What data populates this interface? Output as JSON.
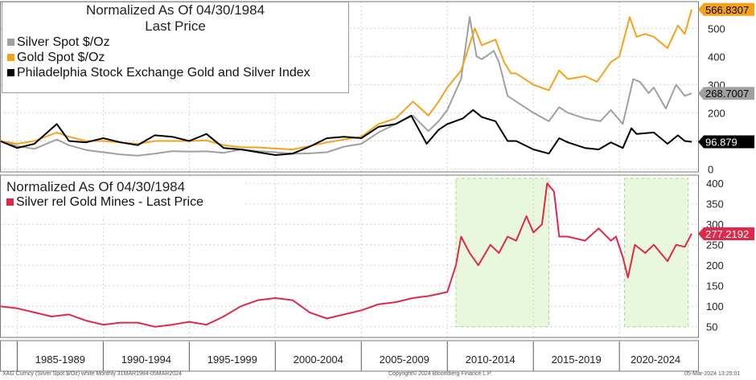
{
  "chart_data": [
    {
      "type": "line",
      "title": "Normalized As Of 04/30/1984",
      "subtitle": "Last Price",
      "ylim": [
        -10,
        595
      ],
      "y_ticks": [
        0,
        100,
        200,
        300,
        400,
        500
      ],
      "x_range": [
        1984.0,
        2024.2
      ],
      "grid": true,
      "legend_position": "top-left",
      "series": [
        {
          "name": "Silver Spot $/Oz",
          "color": "#a0a0a0",
          "last_label": "268.7007",
          "points": [
            [
              1984.0,
              100
            ],
            [
              1985.0,
              82
            ],
            [
              1986.0,
              72
            ],
            [
              1987.3,
              105
            ],
            [
              1988.0,
              85
            ],
            [
              1989.0,
              68
            ],
            [
              1990.0,
              60
            ],
            [
              1991.0,
              52
            ],
            [
              1992.0,
              48
            ],
            [
              1993.0,
              55
            ],
            [
              1994.0,
              64
            ],
            [
              1995.0,
              62
            ],
            [
              1996.0,
              63
            ],
            [
              1997.0,
              58
            ],
            [
              1998.0,
              70
            ],
            [
              1999.0,
              64
            ],
            [
              2000.0,
              60
            ],
            [
              2001.0,
              55
            ],
            [
              2002.0,
              56
            ],
            [
              2003.0,
              60
            ],
            [
              2004.0,
              80
            ],
            [
              2005.0,
              90
            ],
            [
              2006.0,
              130
            ],
            [
              2007.0,
              160
            ],
            [
              2008.0,
              190
            ],
            [
              2008.9,
              135
            ],
            [
              2009.5,
              170
            ],
            [
              2010.0,
              210
            ],
            [
              2010.8,
              320
            ],
            [
              2011.3,
              540
            ],
            [
              2011.7,
              400
            ],
            [
              2012.0,
              390
            ],
            [
              2012.7,
              420
            ],
            [
              2013.0,
              380
            ],
            [
              2013.5,
              260
            ],
            [
              2014.0,
              240
            ],
            [
              2014.5,
              220
            ],
            [
              2015.0,
              200
            ],
            [
              2015.9,
              170
            ],
            [
              2016.5,
              220
            ],
            [
              2017.0,
              200
            ],
            [
              2018.0,
              180
            ],
            [
              2018.9,
              170
            ],
            [
              2019.5,
              210
            ],
            [
              2020.2,
              160
            ],
            [
              2020.8,
              320
            ],
            [
              2021.2,
              310
            ],
            [
              2021.7,
              270
            ],
            [
              2022.0,
              290
            ],
            [
              2022.7,
              215
            ],
            [
              2023.3,
              300
            ],
            [
              2023.8,
              260
            ],
            [
              2024.2,
              269
            ]
          ]
        },
        {
          "name": "Gold Spot $/Oz",
          "color": "#f5a21b",
          "last_label": "566.8307",
          "points": [
            [
              1984.0,
              100
            ],
            [
              1985.0,
              90
            ],
            [
              1986.0,
              100
            ],
            [
              1987.3,
              130
            ],
            [
              1988.0,
              115
            ],
            [
              1989.0,
              100
            ],
            [
              1990.0,
              100
            ],
            [
              1991.0,
              95
            ],
            [
              1992.0,
              90
            ],
            [
              1993.0,
              100
            ],
            [
              1994.0,
              100
            ],
            [
              1995.0,
              100
            ],
            [
              1996.0,
              102
            ],
            [
              1997.0,
              85
            ],
            [
              1998.0,
              78
            ],
            [
              1999.0,
              77
            ],
            [
              2000.0,
              73
            ],
            [
              2001.0,
              70
            ],
            [
              2002.0,
              82
            ],
            [
              2003.0,
              95
            ],
            [
              2004.0,
              105
            ],
            [
              2005.0,
              115
            ],
            [
              2006.0,
              160
            ],
            [
              2007.0,
              180
            ],
            [
              2008.0,
              240
            ],
            [
              2008.9,
              190
            ],
            [
              2009.5,
              240
            ],
            [
              2010.0,
              290
            ],
            [
              2010.8,
              350
            ],
            [
              2011.6,
              500
            ],
            [
              2012.0,
              440
            ],
            [
              2012.8,
              460
            ],
            [
              2013.3,
              380
            ],
            [
              2013.7,
              340
            ],
            [
              2014.0,
              340
            ],
            [
              2015.0,
              300
            ],
            [
              2015.9,
              280
            ],
            [
              2016.5,
              350
            ],
            [
              2017.0,
              320
            ],
            [
              2018.0,
              330
            ],
            [
              2018.7,
              310
            ],
            [
              2019.5,
              380
            ],
            [
              2020.0,
              400
            ],
            [
              2020.6,
              540
            ],
            [
              2021.0,
              470
            ],
            [
              2021.5,
              480
            ],
            [
              2022.0,
              470
            ],
            [
              2022.8,
              430
            ],
            [
              2023.4,
              510
            ],
            [
              2023.8,
              480
            ],
            [
              2024.2,
              567
            ]
          ]
        },
        {
          "name": "Philadelphia Stock Exchange Gold and Silver Index",
          "color": "#000000",
          "last_label": "96.879",
          "points": [
            [
              1984.0,
              100
            ],
            [
              1985.0,
              75
            ],
            [
              1986.0,
              90
            ],
            [
              1987.3,
              160
            ],
            [
              1987.9,
              110
            ],
            [
              1988.0,
              100
            ],
            [
              1989.0,
              95
            ],
            [
              1990.0,
              110
            ],
            [
              1991.0,
              95
            ],
            [
              1992.0,
              85
            ],
            [
              1993.0,
              120
            ],
            [
              1994.0,
              115
            ],
            [
              1995.0,
              100
            ],
            [
              1996.0,
              125
            ],
            [
              1997.0,
              75
            ],
            [
              1998.0,
              70
            ],
            [
              1999.0,
              60
            ],
            [
              2000.0,
              50
            ],
            [
              2001.0,
              55
            ],
            [
              2002.0,
              80
            ],
            [
              2003.0,
              110
            ],
            [
              2004.0,
              115
            ],
            [
              2005.0,
              110
            ],
            [
              2006.0,
              150
            ],
            [
              2007.0,
              160
            ],
            [
              2007.9,
              190
            ],
            [
              2008.8,
              90
            ],
            [
              2009.5,
              140
            ],
            [
              2010.0,
              160
            ],
            [
              2010.9,
              180
            ],
            [
              2011.5,
              210
            ],
            [
              2012.0,
              185
            ],
            [
              2012.8,
              170
            ],
            [
              2013.5,
              100
            ],
            [
              2014.0,
              100
            ],
            [
              2015.0,
              70
            ],
            [
              2015.9,
              55
            ],
            [
              2016.5,
              110
            ],
            [
              2017.0,
              95
            ],
            [
              2018.0,
              75
            ],
            [
              2018.8,
              70
            ],
            [
              2019.5,
              95
            ],
            [
              2020.2,
              75
            ],
            [
              2020.7,
              145
            ],
            [
              2021.0,
              125
            ],
            [
              2022.0,
              130
            ],
            [
              2022.8,
              90
            ],
            [
              2023.4,
              120
            ],
            [
              2023.8,
              100
            ],
            [
              2024.2,
              97
            ]
          ]
        }
      ]
    },
    {
      "type": "line",
      "title": "Normalized As Of 04/30/1984",
      "ylim": [
        24,
        420
      ],
      "y_ticks": [
        50,
        100,
        150,
        200,
        250,
        300,
        350,
        400
      ],
      "x_range": [
        1984.0,
        2024.2
      ],
      "grid": true,
      "legend_position": "top-left",
      "series": [
        {
          "name": "Silver rel Gold Mines - Last Price",
          "color": "#e0284a",
          "last_label": "277.2192",
          "points": [
            [
              1984.0,
              100
            ],
            [
              1985.0,
              95
            ],
            [
              1986.0,
              85
            ],
            [
              1987.0,
              75
            ],
            [
              1988.0,
              80
            ],
            [
              1989.0,
              65
            ],
            [
              1990.0,
              55
            ],
            [
              1991.0,
              60
            ],
            [
              1992.0,
              60
            ],
            [
              1993.0,
              50
            ],
            [
              1994.0,
              55
            ],
            [
              1995.0,
              62
            ],
            [
              1996.0,
              55
            ],
            [
              1997.0,
              75
            ],
            [
              1998.0,
              100
            ],
            [
              1999.0,
              115
            ],
            [
              2000.0,
              120
            ],
            [
              2001.0,
              115
            ],
            [
              2002.0,
              85
            ],
            [
              2003.0,
              70
            ],
            [
              2004.0,
              80
            ],
            [
              2005.0,
              90
            ],
            [
              2006.0,
              105
            ],
            [
              2007.0,
              110
            ],
            [
              2008.0,
              120
            ],
            [
              2008.9,
              125
            ],
            [
              2009.5,
              130
            ],
            [
              2010.0,
              135
            ],
            [
              2010.5,
              200
            ],
            [
              2010.8,
              270
            ],
            [
              2011.3,
              230
            ],
            [
              2011.8,
              200
            ],
            [
              2012.5,
              250
            ],
            [
              2013.0,
              230
            ],
            [
              2013.5,
              270
            ],
            [
              2014.0,
              260
            ],
            [
              2014.6,
              320
            ],
            [
              2015.0,
              280
            ],
            [
              2015.5,
              300
            ],
            [
              2015.8,
              400
            ],
            [
              2016.2,
              380
            ],
            [
              2016.5,
              270
            ],
            [
              2017.0,
              270
            ],
            [
              2018.0,
              260
            ],
            [
              2018.8,
              290
            ],
            [
              2019.5,
              260
            ],
            [
              2019.8,
              270
            ],
            [
              2020.2,
              220
            ],
            [
              2020.5,
              170
            ],
            [
              2020.9,
              250
            ],
            [
              2021.5,
              230
            ],
            [
              2022.0,
              250
            ],
            [
              2022.8,
              210
            ],
            [
              2023.3,
              250
            ],
            [
              2023.8,
              245
            ],
            [
              2024.2,
              277
            ]
          ]
        }
      ],
      "highlight_periods": [
        [
          2010.5,
          2015.9
        ],
        [
          2020.3,
          2024.0
        ]
      ]
    }
  ],
  "x_axis": {
    "periods": [
      "1985-1989",
      "1990-1994",
      "1995-1999",
      "2000-2004",
      "2005-2009",
      "2010-2014",
      "2015-2019",
      "2020-2024"
    ]
  },
  "footer": {
    "left": "XAG Curncy (Silver Spot  $/Oz) white  Monthly 31MAR1984-05MAR2024",
    "center": "Copyright© 2024 Bloomberg Finance L.P.",
    "right": "05-Mar-2024 13:25:01"
  }
}
